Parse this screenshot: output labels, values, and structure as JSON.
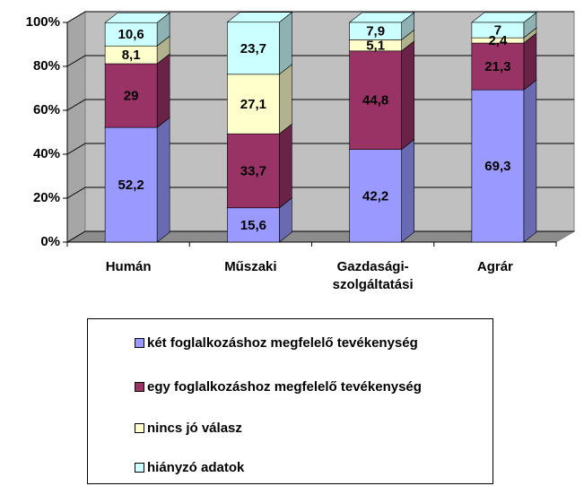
{
  "chart_data": {
    "type": "bar",
    "categories": [
      "Humán",
      "Műszaki",
      "Gazdasági-szolgáltatási",
      "Agrár"
    ],
    "series": [
      {
        "name": "két foglalkozáshoz megfelelő tevékenység",
        "color": "#9999ff",
        "values": [
          52.2,
          15.6,
          42.2,
          69.3
        ],
        "value_labels": [
          "52,2",
          "15,6",
          "42,2",
          "69,3"
        ]
      },
      {
        "name": "egy foglalkozáshoz megfelelő tevékenység",
        "color": "#993366",
        "values": [
          29,
          33.7,
          44.8,
          21.3
        ],
        "value_labels": [
          "29",
          "33,7",
          "44,8",
          "21,3"
        ]
      },
      {
        "name": "nincs jó válasz",
        "color": "#ffffcc",
        "values": [
          8.1,
          27.1,
          5.1,
          2.4
        ],
        "value_labels": [
          "8,1",
          "27,1",
          "5,1",
          "2,4"
        ]
      },
      {
        "name": "hiányzó adatok",
        "color": "#ccffff",
        "values": [
          10.6,
          23.7,
          7.9,
          7
        ],
        "value_labels": [
          "10,6",
          "23,7",
          "7,9",
          "7"
        ]
      }
    ],
    "ylim": [
      0,
      100
    ],
    "yticks": [
      {
        "value": 0,
        "label": "0%"
      },
      {
        "value": 20,
        "label": "20%"
      },
      {
        "value": 40,
        "label": "40%"
      },
      {
        "value": 60,
        "label": "60%"
      },
      {
        "value": 80,
        "label": "80%"
      },
      {
        "value": 100,
        "label": "100%"
      }
    ],
    "grid": true,
    "stacked": true,
    "legend": "bottom"
  }
}
